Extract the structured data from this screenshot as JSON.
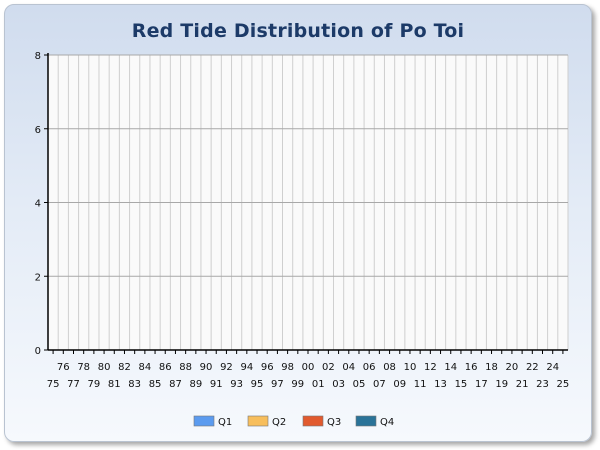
{
  "chart_data": {
    "type": "bar",
    "title": "Red Tide Distribution of Po Toi",
    "xlabel": "",
    "ylabel": "",
    "ylim": [
      0,
      8
    ],
    "yticks": [
      0,
      2,
      4,
      6,
      8
    ],
    "categories": [
      "75",
      "76",
      "77",
      "78",
      "79",
      "80",
      "81",
      "82",
      "83",
      "84",
      "85",
      "86",
      "87",
      "88",
      "89",
      "90",
      "91",
      "92",
      "93",
      "94",
      "95",
      "96",
      "97",
      "98",
      "99",
      "00",
      "01",
      "02",
      "03",
      "04",
      "05",
      "06",
      "07",
      "08",
      "09",
      "10",
      "11",
      "12",
      "13",
      "14",
      "15",
      "16",
      "17",
      "18",
      "19",
      "20",
      "21",
      "22",
      "23",
      "24",
      "25"
    ],
    "series": [
      {
        "name": "Q1",
        "color": "#5b9bef",
        "values": [
          0,
          0,
          0,
          0,
          0,
          0,
          0,
          0,
          0,
          0,
          0,
          0,
          0,
          0,
          0,
          0,
          0,
          0,
          0,
          0,
          0,
          0,
          0,
          0,
          0,
          0,
          0,
          0,
          0,
          0,
          0,
          0,
          0,
          0,
          0,
          0,
          0,
          0,
          0,
          0,
          0,
          0,
          0,
          0,
          0,
          0,
          0,
          0,
          0,
          0,
          0
        ]
      },
      {
        "name": "Q2",
        "color": "#f7be5c",
        "values": [
          0,
          0,
          0,
          0,
          0,
          0,
          0,
          0,
          0,
          0,
          0,
          0,
          0,
          0,
          0,
          0,
          0,
          0,
          0,
          0,
          0,
          0,
          0,
          0,
          0,
          0,
          0,
          0,
          0,
          0,
          0,
          0,
          0,
          0,
          0,
          0,
          0,
          0,
          0,
          0,
          0,
          0,
          0,
          0,
          0,
          0,
          0,
          0,
          0,
          0,
          0
        ]
      },
      {
        "name": "Q3",
        "color": "#e15a2e",
        "values": [
          0,
          0,
          0,
          0,
          0,
          0,
          0,
          0,
          0,
          0,
          0,
          0,
          0,
          0,
          0,
          0,
          0,
          0,
          0,
          0,
          0,
          0,
          0,
          0,
          0,
          0,
          0,
          0,
          0,
          0,
          0,
          0,
          0,
          0,
          0,
          0,
          0,
          0,
          0,
          0,
          0,
          0,
          0,
          0,
          0,
          0,
          0,
          0,
          0,
          0,
          0
        ]
      },
      {
        "name": "Q4",
        "color": "#2a7398",
        "values": [
          0,
          0,
          0,
          0,
          0,
          0,
          0,
          0,
          0,
          0,
          0,
          0,
          0,
          0,
          0,
          0,
          0,
          0,
          0,
          0,
          0,
          0,
          0,
          0,
          0,
          0,
          0,
          0,
          0,
          0,
          0,
          0,
          0,
          0,
          0,
          0,
          0,
          0,
          0,
          0,
          0,
          0,
          0,
          0,
          0,
          0,
          0,
          0,
          0,
          0,
          0
        ]
      }
    ],
    "grid": true,
    "legend_position": "bottom"
  }
}
